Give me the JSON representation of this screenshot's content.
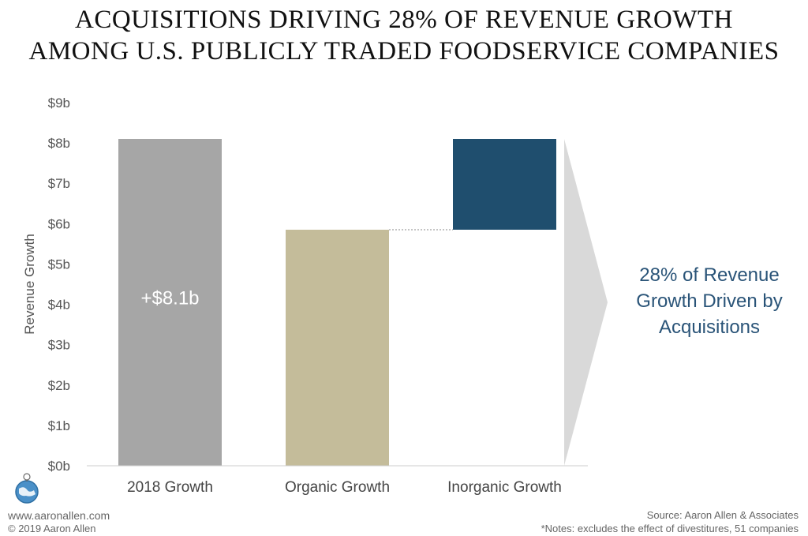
{
  "title_line1": "ACQUISITIONS DRIVING 28% OF REVENUE GROWTH",
  "title_line2": "AMONG U.S. PUBLICLY TRADED FOODSERVICE COMPANIES",
  "callout_text": "28% of Revenue Growth Driven by Acquisitions",
  "bar_label": "+$8.1b",
  "footer": {
    "website": "www.aaronallen.com",
    "copyright": "© 2019 Aaron Allen",
    "source": "Source: Aaron Allen & Associates",
    "notes": "*Notes: excludes the effect of divestitures, 51 companies"
  },
  "colors": {
    "total": "#a6a6a6",
    "organic": "#c4bc9a",
    "inorganic": "#1f4e6e",
    "arrow": "#d9d9d9",
    "callout": "#2a5478"
  },
  "chart_data": {
    "type": "bar",
    "subtype": "waterfall",
    "title": "ACQUISITIONS DRIVING 28% OF REVENUE GROWTH AMONG U.S. PUBLICLY TRADED FOODSERVICE COMPANIES",
    "categories": [
      "2018 Growth",
      "Organic Growth",
      "Inorganic Growth"
    ],
    "series": [
      {
        "values": [
          {
            "category": "2018 Growth",
            "start": 0,
            "end": 8.1
          },
          {
            "category": "Organic Growth",
            "start": 0,
            "end": 5.85
          },
          {
            "category": "Inorganic Growth",
            "start": 5.85,
            "end": 8.1
          }
        ]
      }
    ],
    "ylabel": "Revenue Growth",
    "xlabel": "",
    "ylim": [
      0,
      9
    ],
    "yticks": [
      "$0b",
      "$1b",
      "$2b",
      "$3b",
      "$4b",
      "$5b",
      "$6b",
      "$7b",
      "$8b",
      "$9b"
    ],
    "grid": false,
    "legend": "none"
  }
}
